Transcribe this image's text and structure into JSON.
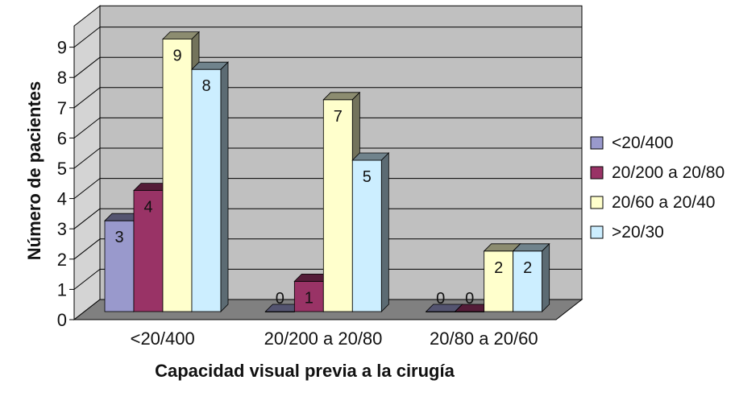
{
  "chart_data": {
    "type": "bar",
    "style": "3d-clustered-column",
    "categories": [
      "<20/400",
      "20/200 a 20/80",
      "20/80 a 20/60"
    ],
    "series": [
      {
        "name": "<20/400",
        "values": [
          3,
          0,
          0
        ],
        "color": "#9999cc"
      },
      {
        "name": "20/200 a 20/80",
        "values": [
          4,
          1,
          0
        ],
        "color": "#993366"
      },
      {
        "name": "20/60 a 20/40",
        "values": [
          9,
          7,
          2
        ],
        "color": "#ffffcc"
      },
      {
        "name": ">20/30",
        "values": [
          8,
          5,
          2
        ],
        "color": "#cceeff"
      }
    ],
    "xlabel": "Capacidad visual previa a la cirugía",
    "ylabel": "Número de pacientes",
    "ylim": [
      0,
      9
    ],
    "yticks": [
      "0",
      "1",
      "2",
      "3",
      "4",
      "5",
      "6",
      "7",
      "8",
      "9"
    ],
    "grid": true,
    "legend": "right",
    "wall_color": "#c0c0c0",
    "floor_color": "#808080"
  }
}
